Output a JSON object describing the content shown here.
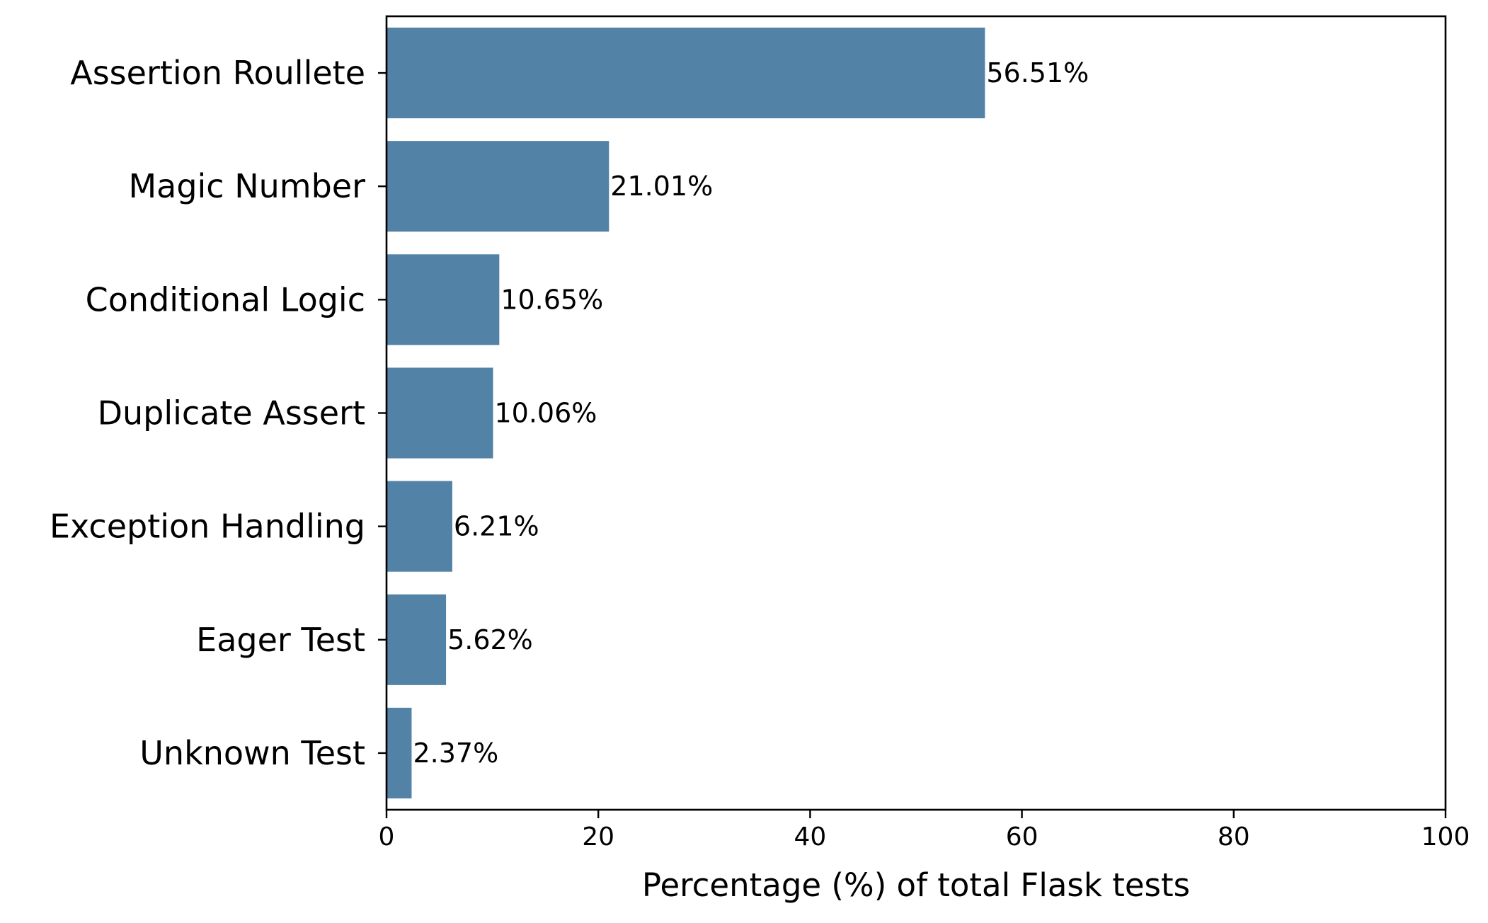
{
  "chart_data": {
    "type": "bar",
    "orientation": "horizontal",
    "categories": [
      "Assertion Roullete",
      "Magic Number",
      "Conditional Logic",
      "Duplicate Assert",
      "Exception Handling",
      "Eager Test",
      "Unknown Test"
    ],
    "values": [
      56.51,
      21.01,
      10.65,
      10.06,
      6.21,
      5.62,
      2.37
    ],
    "data_labels": [
      "56.51%",
      "21.01%",
      "10.65%",
      "10.06%",
      "6.21%",
      "5.62%",
      "2.37%"
    ],
    "xlabel": "Percentage (%) of total Flask tests",
    "ylabel": "",
    "title": "",
    "xlim": [
      0,
      100
    ],
    "xticks": [
      0,
      20,
      40,
      60,
      80,
      100
    ],
    "grid": false,
    "bar_color": "#5382a7"
  }
}
